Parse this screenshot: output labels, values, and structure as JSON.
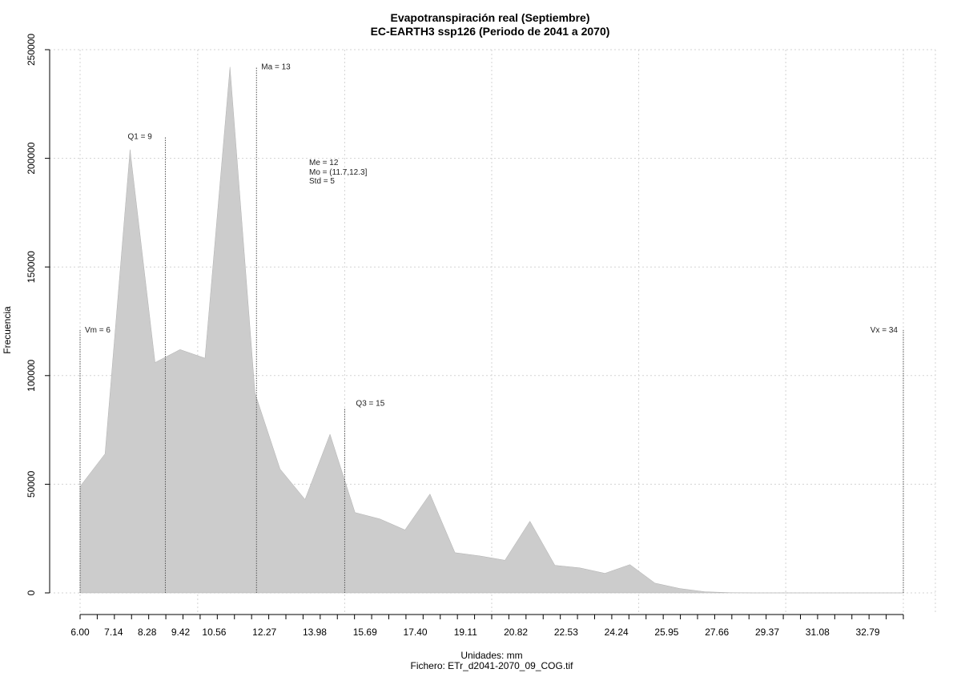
{
  "chart_data": {
    "type": "area",
    "title": "Evapotranspiración real (Septiembre)",
    "subtitle": "EC-EARTH3 ssp126 (Periodo de 2041 a 2070)",
    "xlabel": "Unidades: mm",
    "ylabel": "Frecuencia",
    "footer": "Fichero: ETr_d2041-2070_09_COG.tif",
    "xlim": [
      6.0,
      34.0
    ],
    "ylim": [
      0,
      250000
    ],
    "grid": true,
    "fill_color": "#cccccc",
    "x_tick_labels": [
      "6.00",
      "7.14",
      "8.28",
      "9.42",
      "10.56",
      "12.27",
      "13.98",
      "15.69",
      "17.40",
      "19.11",
      "20.82",
      "22.53",
      "24.24",
      "25.95",
      "27.66",
      "29.37",
      "31.08",
      "32.79"
    ],
    "x_tick_values": [
      6.0,
      7.14,
      8.28,
      9.42,
      10.56,
      12.27,
      13.98,
      15.69,
      17.4,
      19.11,
      20.82,
      22.53,
      24.24,
      25.95,
      27.66,
      29.37,
      31.08,
      32.79
    ],
    "y_ticks": [
      0,
      50000,
      100000,
      150000,
      200000,
      250000
    ],
    "x": [
      6.0,
      6.85,
      7.7,
      8.55,
      9.4,
      10.25,
      11.1,
      11.95,
      12.8,
      13.65,
      14.5,
      15.35,
      16.2,
      17.05,
      17.9,
      18.75,
      19.6,
      20.45,
      21.3,
      22.15,
      23.0,
      23.85,
      24.7,
      25.55,
      26.4,
      27.25,
      28.1,
      28.95,
      29.8,
      30.65,
      31.5,
      32.35,
      33.2,
      34.0
    ],
    "y": [
      49000,
      64000,
      204000,
      106000,
      112000,
      108000,
      242000,
      92000,
      57000,
      43000,
      73000,
      37000,
      34000,
      29000,
      45500,
      18500,
      17000,
      15000,
      33000,
      12700,
      11500,
      9000,
      13000,
      4500,
      2000,
      500,
      100,
      0,
      0,
      0,
      0,
      0,
      0,
      0
    ],
    "markers": [
      {
        "label": "Vm = 6",
        "x": 6.0,
        "y_top": 121000
      },
      {
        "label": "Q1 = 9",
        "x": 8.9,
        "y_top": 210000
      },
      {
        "label": "Ma = 13",
        "x": 12.0,
        "y_top": 242000
      },
      {
        "label": "Q3 = 15",
        "x": 15.0,
        "y_top": 85000
      },
      {
        "label": "Vx = 34",
        "x": 34.0,
        "y_top": 121000
      }
    ],
    "stats": [
      "Me = 12",
      "Mo = (11.7,12.3]",
      "Std = 5"
    ]
  }
}
